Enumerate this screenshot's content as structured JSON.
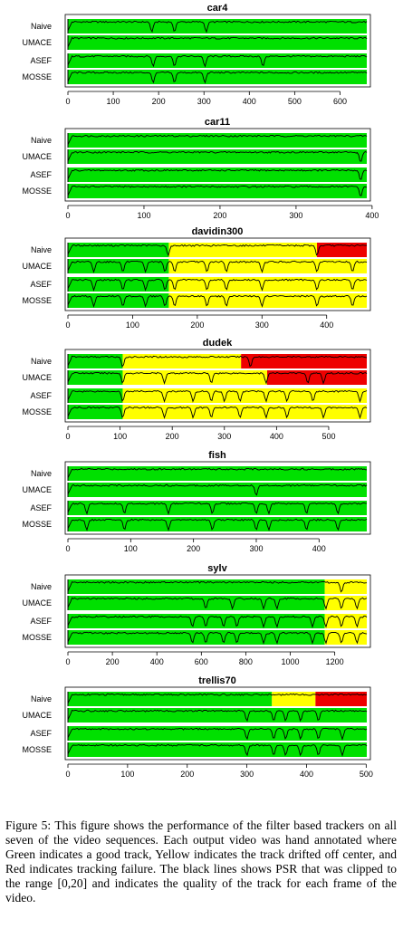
{
  "colors": {
    "good": "#00e000",
    "drift": "#ffff00",
    "fail": "#ee0000",
    "psr": "#000000"
  },
  "caption": {
    "label": "Figure 5:",
    "text": "This figure shows the performance of the filter based trackers on all seven of the video sequences. Each output video was hand annotated where Green indicates a good track, Yellow indicates the track drifted off center, and Red indicates tracking failure. The black lines shows PSR that was clipped to the range [0,20] and indicates the quality of the track for each frame of the video."
  },
  "chart_data": [
    {
      "type": "timeline",
      "title": "car4",
      "trackers": [
        "Naive",
        "UMACE",
        "ASEF",
        "MOSSE"
      ],
      "frames": 659,
      "xlim": [
        0,
        659
      ],
      "xticks": [
        0,
        100,
        200,
        300,
        400,
        500,
        600
      ],
      "tracks": {
        "Naive": [
          [
            "good",
            0,
            659
          ]
        ],
        "UMACE": [
          [
            "good",
            0,
            659
          ]
        ],
        "ASEF": [
          [
            "good",
            0,
            659
          ]
        ],
        "MOSSE": [
          [
            "good",
            0,
            659
          ]
        ]
      },
      "psr_dips": {
        "Naive": [
          185,
          235,
          305
        ],
        "UMACE": [],
        "ASEF": [
          188,
          235,
          302,
          430
        ],
        "MOSSE": [
          188,
          235,
          302
        ]
      }
    },
    {
      "type": "timeline",
      "title": "car11",
      "trackers": [
        "Naive",
        "UMACE",
        "ASEF",
        "MOSSE"
      ],
      "frames": 393,
      "xlim": [
        0,
        393
      ],
      "xticks": [
        0,
        100,
        200,
        300,
        400
      ],
      "tracks": {
        "Naive": [
          [
            "good",
            0,
            393
          ]
        ],
        "UMACE": [
          [
            "good",
            0,
            393
          ]
        ],
        "ASEF": [
          [
            "good",
            0,
            393
          ]
        ],
        "MOSSE": [
          [
            "good",
            0,
            393
          ]
        ]
      },
      "psr_dips": {
        "Naive": [],
        "UMACE": [
          385
        ],
        "ASEF": [
          385
        ],
        "MOSSE": [
          385
        ]
      }
    },
    {
      "type": "timeline",
      "title": "davidin300",
      "trackers": [
        "Naive",
        "UMACE",
        "ASEF",
        "MOSSE"
      ],
      "frames": 462,
      "xlim": [
        0,
        462
      ],
      "xticks": [
        0,
        100,
        200,
        300,
        400
      ],
      "tracks": {
        "Naive": [
          [
            "good",
            0,
            156
          ],
          [
            "drift",
            156,
            385
          ],
          [
            "fail",
            385,
            462
          ]
        ],
        "UMACE": [
          [
            "good",
            0,
            156
          ],
          [
            "drift",
            156,
            462
          ]
        ],
        "ASEF": [
          [
            "good",
            0,
            156
          ],
          [
            "drift",
            156,
            462
          ]
        ],
        "MOSSE": [
          [
            "good",
            0,
            156
          ],
          [
            "drift",
            156,
            462
          ]
        ]
      },
      "psr_dips": {
        "Naive": [
          155,
          385
        ],
        "UMACE": [
          40,
          85,
          120,
          150,
          165,
          215,
          245,
          300,
          385,
          440
        ],
        "ASEF": [
          40,
          85,
          120,
          150,
          165,
          215,
          245,
          300,
          385,
          440
        ],
        "MOSSE": [
          40,
          85,
          120,
          150,
          165,
          215,
          245,
          300,
          385,
          440
        ]
      }
    },
    {
      "type": "timeline",
      "title": "dudek",
      "trackers": [
        "Naive",
        "UMACE",
        "ASEF",
        "MOSSE"
      ],
      "frames": 573,
      "xlim": [
        0,
        573
      ],
      "xticks": [
        0,
        100,
        200,
        300,
        400,
        500
      ],
      "tracks": {
        "Naive": [
          [
            "good",
            0,
            105
          ],
          [
            "drift",
            105,
            332
          ],
          [
            "fail",
            332,
            573
          ]
        ],
        "UMACE": [
          [
            "good",
            0,
            105
          ],
          [
            "drift",
            105,
            382
          ],
          [
            "fail",
            382,
            573
          ]
        ],
        "ASEF": [
          [
            "good",
            0,
            105
          ],
          [
            "drift",
            105,
            573
          ]
        ],
        "MOSSE": [
          [
            "good",
            0,
            105
          ],
          [
            "drift",
            105,
            573
          ]
        ]
      },
      "psr_dips": {
        "Naive": [
          105,
          350
        ],
        "UMACE": [
          105,
          185,
          275,
          380,
          460,
          490
        ],
        "ASEF": [
          105,
          185,
          240,
          275,
          300,
          330,
          380,
          420,
          470,
          560
        ],
        "MOSSE": [
          105,
          185,
          240,
          275,
          330,
          380,
          420,
          490,
          560
        ]
      }
    },
    {
      "type": "timeline",
      "title": "fish",
      "trackers": [
        "Naive",
        "UMACE",
        "ASEF",
        "MOSSE"
      ],
      "frames": 476,
      "xlim": [
        0,
        476
      ],
      "xticks": [
        0,
        100,
        200,
        300,
        400
      ],
      "tracks": {
        "Naive": [
          [
            "good",
            0,
            476
          ]
        ],
        "UMACE": [
          [
            "good",
            0,
            476
          ]
        ],
        "ASEF": [
          [
            "good",
            0,
            476
          ]
        ],
        "MOSSE": [
          [
            "good",
            0,
            476
          ]
        ]
      },
      "psr_dips": {
        "Naive": [],
        "UMACE": [
          300
        ],
        "ASEF": [
          30,
          90,
          160,
          230,
          300,
          320,
          380,
          430
        ],
        "MOSSE": [
          30,
          90,
          160,
          230,
          300,
          320,
          380,
          430
        ]
      }
    },
    {
      "type": "timeline",
      "title": "sylv",
      "trackers": [
        "Naive",
        "UMACE",
        "ASEF",
        "MOSSE"
      ],
      "frames": 1344,
      "xlim": [
        0,
        1344
      ],
      "xticks": [
        0,
        200,
        400,
        600,
        800,
        1000,
        1200
      ],
      "tracks": {
        "Naive": [
          [
            "good",
            0,
            1155
          ],
          [
            "drift",
            1155,
            1344
          ]
        ],
        "UMACE": [
          [
            "good",
            0,
            1155
          ],
          [
            "drift",
            1155,
            1344
          ]
        ],
        "ASEF": [
          [
            "good",
            0,
            1155
          ],
          [
            "drift",
            1155,
            1344
          ]
        ],
        "MOSSE": [
          [
            "good",
            0,
            1155
          ],
          [
            "drift",
            1155,
            1344
          ]
        ]
      },
      "psr_dips": {
        "Naive": [
          1230
        ],
        "UMACE": [
          620,
          740,
          880,
          940,
          1160,
          1230,
          1300
        ],
        "ASEF": [
          560,
          620,
          700,
          760,
          880,
          940,
          1100,
          1160,
          1230,
          1300
        ],
        "MOSSE": [
          560,
          620,
          700,
          760,
          880,
          940,
          1100,
          1160,
          1230,
          1300
        ]
      }
    },
    {
      "type": "timeline",
      "title": "trellis70",
      "trackers": [
        "Naive",
        "UMACE",
        "ASEF",
        "MOSSE"
      ],
      "frames": 501,
      "xlim": [
        0,
        501
      ],
      "xticks": [
        0,
        100,
        200,
        300,
        400,
        500
      ],
      "tracks": {
        "Naive": [
          [
            "good",
            0,
            342
          ],
          [
            "drift",
            342,
            415
          ],
          [
            "fail",
            415,
            501
          ]
        ],
        "UMACE": [
          [
            "good",
            0,
            501
          ]
        ],
        "ASEF": [
          [
            "good",
            0,
            501
          ]
        ],
        "MOSSE": [
          [
            "good",
            0,
            501
          ]
        ]
      },
      "psr_dips": {
        "Naive": [],
        "UMACE": [
          300,
          345,
          365,
          390,
          420
        ],
        "ASEF": [
          300,
          345,
          365,
          390,
          420,
          460
        ],
        "MOSSE": [
          300,
          345,
          365,
          390,
          420,
          460
        ]
      }
    }
  ]
}
